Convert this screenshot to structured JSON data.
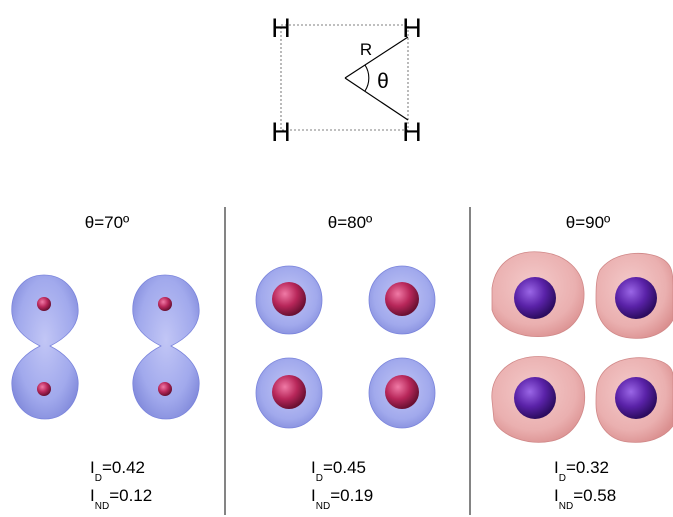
{
  "schematic": {
    "atom_label": "H",
    "distance_label": "R",
    "angle_label": "θ"
  },
  "panels": [
    {
      "title": "θ=70º",
      "i_d_sub": "D",
      "i_d_value": "=0.42",
      "i_nd_sub": "ND",
      "i_nd_value": "=0.12",
      "style": "dimer"
    },
    {
      "title": "θ=80º",
      "i_d_sub": "D",
      "i_d_value": "=0.45",
      "i_nd_sub": "ND",
      "i_nd_value": "=0.19",
      "style": "blue-spheres"
    },
    {
      "title": "θ=90º",
      "i_d_sub": "D",
      "i_d_value": "=0.32",
      "i_nd_sub": "ND",
      "i_nd_value": "=0.58",
      "style": "red-spheres"
    }
  ],
  "index_symbol": "I",
  "colors": {
    "blue_cloud": "#8a94e8",
    "red_cloud": "#e89494",
    "nucleus_red": "#b8275a",
    "nucleus_purple": "#5a22a8",
    "divider": "#333333"
  }
}
